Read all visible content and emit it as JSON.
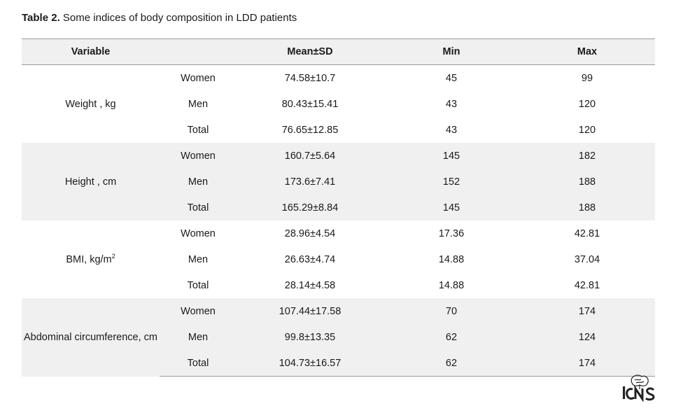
{
  "caption": {
    "label": "Table 2.",
    "text": " Some indices of body composition in LDD patients"
  },
  "table": {
    "headers": [
      "Variable",
      "",
      "Mean±SD",
      "Min",
      "Max"
    ],
    "groups": [
      {
        "variable": "Weight , kg",
        "rows": [
          {
            "group": "Women",
            "mean_sd": "74.58±10.7",
            "min": "45",
            "max": "99"
          },
          {
            "group": "Men",
            "mean_sd": "80.43±15.41",
            "min": "43",
            "max": "120"
          },
          {
            "group": "Total",
            "mean_sd": "76.65±12.85",
            "min": "43",
            "max": "120"
          }
        ]
      },
      {
        "variable": "Height , cm",
        "rows": [
          {
            "group": "Women",
            "mean_sd": "160.7±5.64",
            "min": "145",
            "max": "182"
          },
          {
            "group": "Men",
            "mean_sd": "173.6±7.41",
            "min": "152",
            "max": "188"
          },
          {
            "group": "Total",
            "mean_sd": "165.29±8.84",
            "min": "145",
            "max": "188"
          }
        ]
      },
      {
        "variable": "BMI, kg/m",
        "variable_sup": "2",
        "rows": [
          {
            "group": "Women",
            "mean_sd": "28.96±4.54",
            "min": "17.36",
            "max": "42.81"
          },
          {
            "group": "Men",
            "mean_sd": "26.63±4.74",
            "min": "14.88",
            "max": "37.04"
          },
          {
            "group": "Total",
            "mean_sd": "28.14±4.58",
            "min": "14.88",
            "max": "42.81"
          }
        ]
      },
      {
        "variable": "Abdominal circumference, cm",
        "rows": [
          {
            "group": "Women",
            "mean_sd": "107.44±17.58",
            "min": "70",
            "max": "174"
          },
          {
            "group": "Men",
            "mean_sd": "99.8±13.35",
            "min": "62",
            "max": "124"
          },
          {
            "group": "Total",
            "mean_sd": "104.73±16.57",
            "min": "62",
            "max": "174"
          }
        ]
      }
    ]
  },
  "logo": {
    "text": "ICNS",
    "icon": "brain-logo-icon"
  }
}
